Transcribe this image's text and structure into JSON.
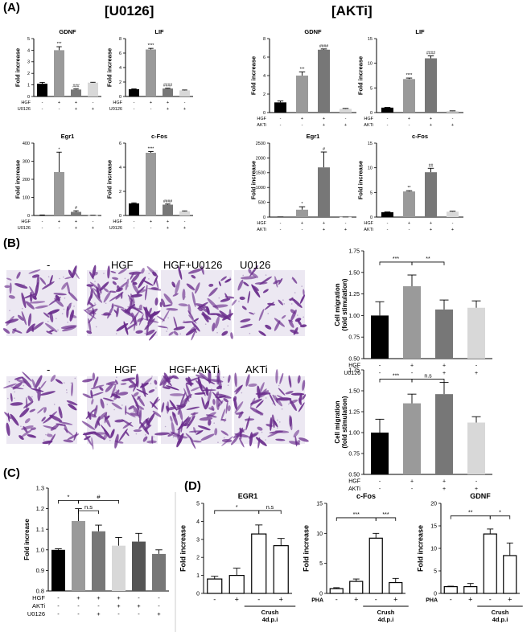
{
  "colors": {
    "black": "#000000",
    "dark_gray": "#777777",
    "mid_gray": "#9a9a9a",
    "light_gray": "#d8d8d8",
    "stain": "#6a2d8c",
    "well_bg": "#ece8f2"
  },
  "panel_labels": {
    "A": "(A)",
    "B": "(B)",
    "C": "(C)",
    "D": "(D)"
  },
  "group_labels": {
    "u0126": "[U0126]",
    "akti": "[AKTi]"
  },
  "micro_labels": {
    "row1": [
      "-",
      "HGF",
      "HGF+U0126",
      "U0126"
    ],
    "row2": [
      "-",
      "HGF",
      "HGF+AKTi",
      "AKTi"
    ]
  },
  "chart_data": [
    {
      "id": "a-u-gdnf",
      "type": "bar",
      "title": "GDNF",
      "ylabel": "Fold increase",
      "yticks": [
        "0",
        "1",
        "2",
        "3",
        "4",
        "5"
      ],
      "ylim": [
        0,
        5
      ],
      "values": [
        1.1,
        4.0,
        0.6,
        1.2
      ],
      "errors": [
        0.12,
        0.3,
        0.05,
        0.03
      ],
      "colors": [
        "#000000",
        "#9a9a9a",
        "#777777",
        "#d8d8d8"
      ],
      "sig": [
        "",
        "***",
        "###",
        ""
      ],
      "cond_rows": [
        {
          "name": "HGF",
          "v": [
            "-",
            "+",
            "+",
            "-"
          ]
        },
        {
          "name": "U0126",
          "v": [
            "-",
            "-",
            "+",
            "+"
          ]
        }
      ]
    },
    {
      "id": "a-u-lif",
      "type": "bar",
      "title": "LIF",
      "ylabel": "Fold increase",
      "yticks": [
        "0",
        "2",
        "4",
        "6",
        "8"
      ],
      "ylim": [
        0,
        8
      ],
      "values": [
        1.0,
        6.5,
        1.1,
        0.85
      ],
      "errors": [
        0.05,
        0.15,
        0.05,
        0.05
      ],
      "colors": [
        "#000000",
        "#9a9a9a",
        "#777777",
        "#d8d8d8"
      ],
      "sig": [
        "",
        "****",
        "####",
        ""
      ],
      "cond_rows": [
        {
          "name": "HGF",
          "v": [
            "-",
            "+",
            "+",
            "-"
          ]
        },
        {
          "name": "U0126",
          "v": [
            "-",
            "-",
            "+",
            "+"
          ]
        }
      ]
    },
    {
      "id": "a-u-egr1",
      "type": "bar",
      "title": "Egr1",
      "ylabel": "Fold increase",
      "yticks": [
        "0",
        "100",
        "200",
        "300",
        "400"
      ],
      "ylim": [
        0,
        400
      ],
      "values": [
        2,
        240,
        20,
        1
      ],
      "errors": [
        1,
        110,
        6,
        0.5
      ],
      "colors": [
        "#000000",
        "#9a9a9a",
        "#777777",
        "#d8d8d8"
      ],
      "sig": [
        "",
        "*",
        "#",
        ""
      ],
      "cond_rows": [
        {
          "name": "HGF",
          "v": [
            "-",
            "+",
            "+",
            "-"
          ]
        },
        {
          "name": "U0126",
          "v": [
            "-",
            "-",
            "+",
            "+"
          ]
        }
      ]
    },
    {
      "id": "a-u-cfos",
      "type": "bar",
      "title": "c-Fos",
      "ylabel": "Fold increase",
      "yticks": [
        "0",
        "2",
        "4",
        "6"
      ],
      "ylim": [
        0,
        6
      ],
      "values": [
        1.0,
        5.2,
        0.9,
        0.35
      ],
      "errors": [
        0.05,
        0.1,
        0.05,
        0.03
      ],
      "colors": [
        "#000000",
        "#9a9a9a",
        "#777777",
        "#d8d8d8"
      ],
      "sig": [
        "",
        "****",
        "####",
        ""
      ],
      "cond_rows": [
        {
          "name": "HGF",
          "v": [
            "-",
            "+",
            "+",
            "-"
          ]
        },
        {
          "name": "U0126",
          "v": [
            "-",
            "-",
            "+",
            "+"
          ]
        }
      ]
    },
    {
      "id": "a-a-gdnf",
      "type": "bar",
      "title": "GDNF",
      "ylabel": "Fold increase",
      "yticks": [
        "0",
        "2",
        "4",
        "6",
        "8"
      ],
      "ylim": [
        0,
        8
      ],
      "values": [
        1.1,
        4.0,
        6.8,
        0.4
      ],
      "errors": [
        0.15,
        0.4,
        0.08,
        0.05
      ],
      "colors": [
        "#000000",
        "#9a9a9a",
        "#777777",
        "#d8d8d8"
      ],
      "sig": [
        "",
        "***",
        "####",
        ""
      ],
      "cond_rows": [
        {
          "name": "HGF",
          "v": [
            "-",
            "+",
            "+",
            "-"
          ]
        },
        {
          "name": "AKTi",
          "v": [
            "-",
            "-",
            "+",
            "+"
          ]
        }
      ]
    },
    {
      "id": "a-a-lif",
      "type": "bar",
      "title": "LIF",
      "ylabel": "Fold increase",
      "yticks": [
        "0",
        "5",
        "10",
        "15"
      ],
      "ylim": [
        0,
        15
      ],
      "values": [
        1.0,
        6.8,
        11.0,
        0.3
      ],
      "errors": [
        0.05,
        0.2,
        0.5,
        0.05
      ],
      "colors": [
        "#000000",
        "#9a9a9a",
        "#777777",
        "#d8d8d8"
      ],
      "sig": [
        "",
        "****",
        "####",
        ""
      ],
      "cond_rows": [
        {
          "name": "HGF",
          "v": [
            "-",
            "+",
            "+",
            "-"
          ]
        },
        {
          "name": "AKTi",
          "v": [
            "-",
            "-",
            "+",
            "+"
          ]
        }
      ]
    },
    {
      "id": "a-a-egr1",
      "type": "bar",
      "title": "Egr1",
      "ylabel": "Fold increase",
      "yticks": [
        "0",
        "500",
        "1000",
        "1500",
        "2000",
        "2500"
      ],
      "ylim": [
        0,
        2500
      ],
      "values": [
        5,
        250,
        1680,
        3
      ],
      "errors": [
        2,
        100,
        520,
        1
      ],
      "colors": [
        "#000000",
        "#9a9a9a",
        "#777777",
        "#d8d8d8"
      ],
      "sig": [
        "",
        "*",
        "#",
        ""
      ],
      "cond_rows": [
        {
          "name": "HGF",
          "v": [
            "-",
            "+",
            "+",
            "-"
          ]
        },
        {
          "name": "AKTi",
          "v": [
            "-",
            "-",
            "+",
            "+"
          ]
        }
      ]
    },
    {
      "id": "a-a-cfos",
      "type": "bar",
      "title": "c-Fos",
      "ylabel": "Fold increase",
      "yticks": [
        "0",
        "5",
        "10",
        "15"
      ],
      "ylim": [
        0,
        15
      ],
      "values": [
        1.0,
        5.2,
        9.1,
        1.1
      ],
      "errors": [
        0.05,
        0.15,
        0.8,
        0.1
      ],
      "colors": [
        "#000000",
        "#9a9a9a",
        "#777777",
        "#d8d8d8"
      ],
      "sig": [
        "",
        "**",
        "##",
        ""
      ],
      "cond_rows": [
        {
          "name": "HGF",
          "v": [
            "-",
            "+",
            "+",
            "-"
          ]
        },
        {
          "name": "AKTi",
          "v": [
            "-",
            "-",
            "+",
            "+"
          ]
        }
      ]
    },
    {
      "id": "b-u",
      "type": "bar",
      "title": "",
      "ylabel": "Cell migration (fold stimulation)",
      "yticks": [
        "0.50",
        "0.75",
        "1.00",
        "1.25",
        "1.50",
        "1.75"
      ],
      "ylim": [
        0.5,
        1.75
      ],
      "values": [
        1.0,
        1.34,
        1.07,
        1.09
      ],
      "errors": [
        0.16,
        0.13,
        0.11,
        0.08
      ],
      "colors": [
        "#000000",
        "#9a9a9a",
        "#777777",
        "#d8d8d8"
      ],
      "sig": [
        "",
        "",
        "",
        ""
      ],
      "brackets": [
        {
          "a": 0,
          "b": 1,
          "y": 1.62,
          "label": "***"
        },
        {
          "a": 1,
          "b": 2,
          "y": 1.62,
          "label": "**"
        }
      ],
      "cond_rows": [
        {
          "name": "HGF",
          "v": [
            "-",
            "+",
            "+",
            "-"
          ]
        },
        {
          "name": "U0126",
          "v": [
            "-",
            "-",
            "+",
            "+"
          ]
        }
      ]
    },
    {
      "id": "b-a",
      "type": "bar",
      "title": "",
      "ylabel": "Cell migration (fold stimulation)",
      "yticks": [
        "0.50",
        "0.75",
        "1.00",
        "1.25",
        "1.50",
        "1.75"
      ],
      "ylim": [
        0.5,
        1.75
      ],
      "values": [
        1.0,
        1.35,
        1.46,
        1.12
      ],
      "errors": [
        0.16,
        0.11,
        0.14,
        0.07
      ],
      "colors": [
        "#000000",
        "#9a9a9a",
        "#777777",
        "#d8d8d8"
      ],
      "sig": [
        "",
        "",
        "",
        ""
      ],
      "brackets": [
        {
          "a": 0,
          "b": 1,
          "y": 1.64,
          "label": "***"
        },
        {
          "a": 1,
          "b": 2,
          "y": 1.64,
          "label": "n.s"
        }
      ],
      "cond_rows": [
        {
          "name": "HGF",
          "v": [
            "-",
            "+",
            "+",
            "-"
          ]
        },
        {
          "name": "AKTi",
          "v": [
            "-",
            "-",
            "+",
            "+"
          ]
        }
      ]
    },
    {
      "id": "c",
      "type": "bar",
      "title": "",
      "ylabel": "Fold increase",
      "yticks": [
        "0.8",
        "0.9",
        "1.0",
        "1.1",
        "1.2",
        "1.3"
      ],
      "ylim": [
        0.8,
        1.3
      ],
      "values": [
        1.0,
        1.14,
        1.09,
        1.02,
        1.04,
        0.98
      ],
      "errors": [
        0.005,
        0.06,
        0.03,
        0.04,
        0.04,
        0.02
      ],
      "colors": [
        "#000000",
        "#9a9a9a",
        "#777777",
        "#d8d8d8",
        "#555555",
        "#777777"
      ],
      "sig": [
        "",
        "",
        "",
        "",
        "",
        ""
      ],
      "brackets": [
        {
          "a": 0,
          "b": 1,
          "y": 1.24,
          "label": "*"
        },
        {
          "a": 1,
          "b": 2,
          "y": 1.19,
          "label": "n.s"
        },
        {
          "a": 1,
          "b": 3,
          "y": 1.24,
          "label": "#"
        }
      ],
      "cond_rows": [
        {
          "name": "HGF",
          "v": [
            "-",
            "+",
            "+",
            "+",
            "-",
            "-"
          ]
        },
        {
          "name": "AKTi",
          "v": [
            "-",
            "-",
            "-",
            "+",
            "+",
            "-"
          ]
        },
        {
          "name": "U0126",
          "v": [
            "-",
            "-",
            "+",
            "-",
            "-",
            "+"
          ]
        }
      ]
    },
    {
      "id": "d-egr1",
      "type": "bar",
      "title": "EGR1",
      "ylabel": "Fold increase",
      "yticks": [
        "0",
        "1",
        "2",
        "3",
        "4",
        "5"
      ],
      "ylim": [
        0,
        5
      ],
      "values": [
        0.8,
        1.0,
        3.3,
        2.65
      ],
      "errors": [
        0.15,
        0.4,
        0.5,
        0.4
      ],
      "fill": "hollow",
      "sig": [
        "",
        "",
        "",
        ""
      ],
      "brackets": [
        {
          "a": 0,
          "b": 2,
          "y": 4.6,
          "label": "*"
        },
        {
          "a": 2,
          "b": 3,
          "y": 4.6,
          "label": "n.s"
        }
      ],
      "cond_rows": [
        {
          "name": "",
          "v": [
            "-",
            "+",
            "-",
            "+"
          ]
        }
      ],
      "group_label": [
        "Crush",
        "4d.p.i"
      ]
    },
    {
      "id": "d-cfos",
      "type": "bar",
      "title": "c-Fos",
      "ylabel": "Fold increase",
      "yticks": [
        "0",
        "5",
        "10",
        "15"
      ],
      "ylim": [
        0,
        15
      ],
      "values": [
        0.8,
        2.0,
        9.2,
        1.8
      ],
      "errors": [
        0.15,
        0.4,
        0.8,
        0.7
      ],
      "fill": "hollow",
      "sig": [
        "",
        "",
        "",
        ""
      ],
      "brackets": [
        {
          "a": 0,
          "b": 2,
          "y": 12.6,
          "label": "***"
        },
        {
          "a": 2,
          "b": 3,
          "y": 12.6,
          "label": "***"
        }
      ],
      "cond_rows": [
        {
          "name": "PHA",
          "v": [
            "-",
            "+",
            "-",
            "+"
          ]
        }
      ],
      "group_label": [
        "Crush",
        "4d.p.i"
      ]
    },
    {
      "id": "d-gdnf",
      "type": "bar",
      "title": "GDNF",
      "ylabel": "Fold increase",
      "yticks": [
        "0",
        "5",
        "10",
        "15",
        "20"
      ],
      "ylim": [
        0,
        20
      ],
      "values": [
        1.5,
        1.5,
        13.2,
        8.4
      ],
      "errors": [
        0.1,
        0.7,
        1.1,
        2.8
      ],
      "fill": "hollow",
      "sig": [
        "",
        "",
        "",
        ""
      ],
      "brackets": [
        {
          "a": 0,
          "b": 2,
          "y": 17.2,
          "label": "**"
        },
        {
          "a": 2,
          "b": 3,
          "y": 17.2,
          "label": "*"
        }
      ],
      "cond_rows": [
        {
          "name": "PHA",
          "v": [
            "-",
            "+",
            "-",
            "+"
          ]
        }
      ],
      "group_label": [
        "Crush",
        "4d.p.i"
      ]
    }
  ]
}
